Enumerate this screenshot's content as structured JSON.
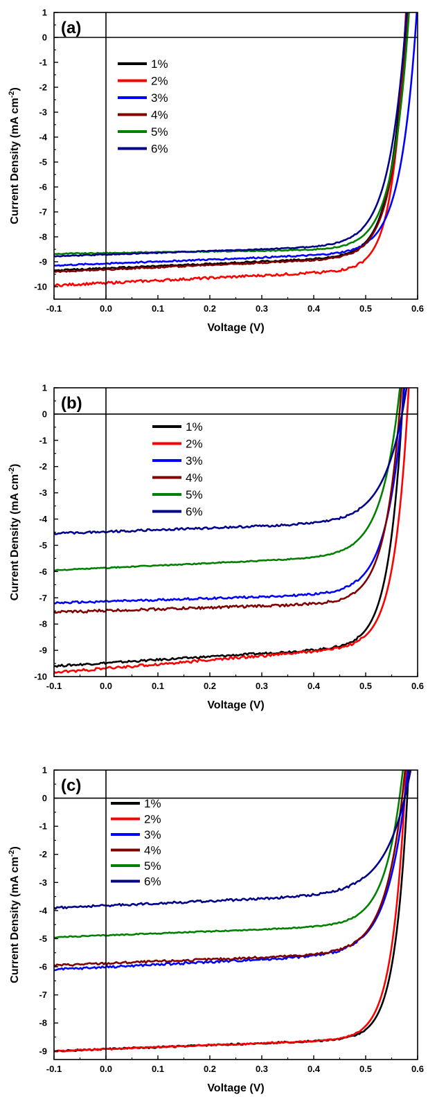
{
  "chart_data": [
    {
      "type": "line",
      "panel_label": "(a)",
      "xlabel": "Voltage (V)",
      "ylabel": "Current Density (mA cm",
      "ylabel_sup": "-2",
      "ylabel_close": ")",
      "xlim": [
        -0.1,
        0.6
      ],
      "ylim": [
        -10.5,
        1
      ],
      "xticks": [
        -0.1,
        0.0,
        0.1,
        0.2,
        0.3,
        0.4,
        0.5,
        0.6
      ],
      "xtick_labels": [
        "-0.1",
        "0.0",
        "0.1",
        "0.2",
        "0.3",
        "0.4",
        "0.5",
        "0.6"
      ],
      "yticks": [
        1,
        0,
        -1,
        -2,
        -3,
        -4,
        -5,
        -6,
        -7,
        -8,
        -9,
        -10
      ],
      "ytick_labels": [
        "1",
        "0",
        "-1",
        "-2",
        "-3",
        "-4",
        "-5",
        "-6",
        "-7",
        "-8",
        "-9",
        "-10"
      ],
      "legend_position": "upper-left",
      "series": [
        {
          "name": "1%",
          "color": "#000000",
          "jsc": -9.35,
          "slope": 0.9,
          "voc": 0.575,
          "a": 0.028,
          "noise": 0.03
        },
        {
          "name": "2%",
          "color": "#ff0000",
          "jsc": -9.95,
          "slope": 1.0,
          "voc": 0.575,
          "a": 0.025,
          "noise": 0.05
        },
        {
          "name": "3%",
          "color": "#0000ff",
          "jsc": -9.15,
          "slope": 0.8,
          "voc": 0.595,
          "a": 0.031,
          "noise": 0.03
        },
        {
          "name": "4%",
          "color": "#800000",
          "jsc": -9.4,
          "slope": 0.9,
          "voc": 0.578,
          "a": 0.029,
          "noise": 0.03
        },
        {
          "name": "5%",
          "color": "#008000",
          "jsc": -8.68,
          "slope": 0.3,
          "voc": 0.58,
          "a": 0.031,
          "noise": 0.02
        },
        {
          "name": "6%",
          "color": "#00008b",
          "jsc": -8.78,
          "slope": 0.7,
          "voc": 0.575,
          "a": 0.033,
          "noise": 0.02
        }
      ]
    },
    {
      "type": "line",
      "panel_label": "(b)",
      "xlabel": "Voltage (V)",
      "ylabel": "Current Density (mA cm",
      "ylabel_sup": "-2",
      "ylabel_close": ")",
      "xlim": [
        -0.1,
        0.6
      ],
      "ylim": [
        -10,
        1
      ],
      "xticks": [
        -0.1,
        0.0,
        0.1,
        0.2,
        0.3,
        0.4,
        0.5,
        0.6
      ],
      "xtick_labels": [
        "-0.1",
        "0.0",
        "0.1",
        "0.2",
        "0.3",
        "0.4",
        "0.5",
        "0.6"
      ],
      "yticks": [
        1,
        0,
        -1,
        -2,
        -3,
        -4,
        -5,
        -6,
        -7,
        -8,
        -9,
        -10
      ],
      "ytick_labels": [
        "1",
        "0",
        "-1",
        "-2",
        "-3",
        "-4",
        "-5",
        "-6",
        "-7",
        "-8",
        "-9",
        "-10"
      ],
      "legend_position": "upper-left",
      "series": [
        {
          "name": "1%",
          "color": "#000000",
          "jsc": -9.6,
          "slope": 1.2,
          "voc": 0.57,
          "a": 0.027,
          "noise": 0.04
        },
        {
          "name": "2%",
          "color": "#ff0000",
          "jsc": -9.85,
          "slope": 1.6,
          "voc": 0.58,
          "a": 0.027,
          "noise": 0.05
        },
        {
          "name": "3%",
          "color": "#0000ff",
          "jsc": -7.2,
          "slope": 0.6,
          "voc": 0.57,
          "a": 0.033,
          "noise": 0.04
        },
        {
          "name": "4%",
          "color": "#800000",
          "jsc": -7.55,
          "slope": 0.6,
          "voc": 0.565,
          "a": 0.03,
          "noise": 0.05
        },
        {
          "name": "5%",
          "color": "#008000",
          "jsc": -5.95,
          "slope": 0.9,
          "voc": 0.56,
          "a": 0.035,
          "noise": 0.02
        },
        {
          "name": "6%",
          "color": "#00008b",
          "jsc": -4.55,
          "slope": 0.7,
          "voc": 0.57,
          "a": 0.04,
          "noise": 0.04
        }
      ]
    },
    {
      "type": "line",
      "panel_label": "(c)",
      "xlabel": "Voltage (V)",
      "ylabel": "Current Density (mA cm",
      "ylabel_sup": "-2",
      "ylabel_close": ")",
      "xlim": [
        -0.1,
        0.6
      ],
      "ylim": [
        -9.3,
        1
      ],
      "xticks": [
        -0.1,
        0.0,
        0.1,
        0.2,
        0.3,
        0.4,
        0.5,
        0.6
      ],
      "xtick_labels": [
        "-0.1",
        "0.0",
        "0.1",
        "0.2",
        "0.3",
        "0.4",
        "0.5",
        "0.6"
      ],
      "yticks": [
        1,
        0,
        -1,
        -2,
        -3,
        -4,
        -5,
        -6,
        -7,
        -8,
        -9
      ],
      "ytick_labels": [
        "1",
        "0",
        "-1",
        "-2",
        "-3",
        "-4",
        "-5",
        "-6",
        "-7",
        "-8",
        "-9"
      ],
      "legend_position": "upper-left",
      "series": [
        {
          "name": "1%",
          "color": "#000000",
          "jsc": -9.0,
          "slope": 0.7,
          "voc": 0.58,
          "a": 0.025,
          "noise": 0.03
        },
        {
          "name": "2%",
          "color": "#ff0000",
          "jsc": -9.0,
          "slope": 0.7,
          "voc": 0.575,
          "a": 0.026,
          "noise": 0.02
        },
        {
          "name": "3%",
          "color": "#0000ff",
          "jsc": -6.1,
          "slope": 0.9,
          "voc": 0.575,
          "a": 0.037,
          "noise": 0.04
        },
        {
          "name": "4%",
          "color": "#800000",
          "jsc": -5.95,
          "slope": 0.7,
          "voc": 0.57,
          "a": 0.035,
          "noise": 0.04
        },
        {
          "name": "5%",
          "color": "#008000",
          "jsc": -4.95,
          "slope": 0.7,
          "voc": 0.565,
          "a": 0.033,
          "noise": 0.02
        },
        {
          "name": "6%",
          "color": "#00008b",
          "jsc": -3.9,
          "slope": 0.8,
          "voc": 0.575,
          "a": 0.045,
          "noise": 0.04
        }
      ]
    }
  ]
}
